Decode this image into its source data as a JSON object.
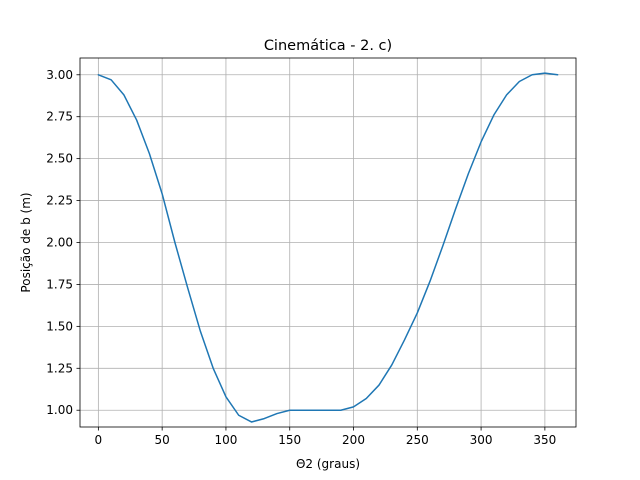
{
  "chart_data": {
    "type": "line",
    "title": "Cinemática - 2. c)",
    "xlabel": "Θ2 (graus)",
    "ylabel": "Posição de b (m)",
    "xlim": [
      -14.4,
      374.4
    ],
    "ylim": [
      0.9,
      3.1
    ],
    "x_ticks": [
      0,
      50,
      100,
      150,
      200,
      250,
      300,
      350
    ],
    "y_ticks": [
      1.0,
      1.25,
      1.5,
      1.75,
      2.0,
      2.25,
      2.5,
      2.75,
      3.0
    ],
    "x_tick_labels": [
      "0",
      "50",
      "100",
      "150",
      "200",
      "250",
      "300",
      "350"
    ],
    "y_tick_labels": [
      "1.00",
      "1.25",
      "1.50",
      "1.75",
      "2.00",
      "2.25",
      "2.50",
      "2.75",
      "3.00"
    ],
    "grid": true,
    "series": [
      {
        "color": "#1f77b4",
        "x": [
          0,
          10,
          20,
          30,
          40,
          50,
          60,
          70,
          80,
          90,
          100,
          110,
          120,
          130,
          140,
          150,
          160,
          170,
          180,
          190,
          200,
          210,
          220,
          230,
          240,
          250,
          260,
          270,
          280,
          290,
          300,
          310,
          320,
          330,
          340,
          350,
          360
        ],
        "values": [
          3.0,
          2.97,
          2.88,
          2.73,
          2.53,
          2.29,
          2.0,
          1.73,
          1.47,
          1.25,
          1.08,
          0.97,
          0.93,
          0.95,
          0.98,
          1.0,
          1.0,
          1.0,
          1.0,
          1.0,
          1.02,
          1.07,
          1.15,
          1.27,
          1.42,
          1.58,
          1.77,
          1.98,
          2.2,
          2.41,
          2.6,
          2.76,
          2.88,
          2.96,
          3.0,
          3.01,
          3.0
        ]
      }
    ]
  }
}
